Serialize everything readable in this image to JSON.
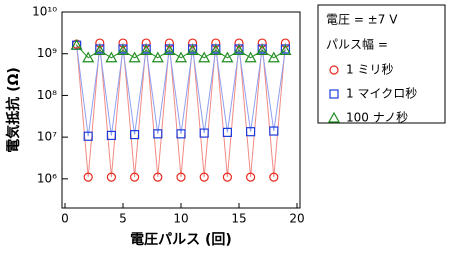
{
  "chart_data": {
    "type": "line",
    "log_y": true,
    "x_label": "電圧パルス (回)",
    "y_label": "電気抵抗 (Ω)",
    "legend_title": "電圧 = ±7 V",
    "legend_subtitle": "パルス幅 =",
    "x": [
      1,
      2,
      3,
      4,
      5,
      6,
      7,
      8,
      9,
      10,
      11,
      12,
      13,
      14,
      15,
      16,
      17,
      18,
      19
    ],
    "xlim": [
      0,
      20
    ],
    "xticks": [
      0,
      5,
      10,
      15,
      20
    ],
    "ylim": [
      200000,
      10000000000
    ],
    "yticks": [
      {
        "value": 1000000,
        "label": "10⁶"
      },
      {
        "value": 10000000,
        "label": "10⁷"
      },
      {
        "value": 100000000,
        "label": "10⁸"
      },
      {
        "value": 1000000000,
        "label": "10⁹"
      },
      {
        "value": 10000000000,
        "label": "10¹⁰"
      }
    ],
    "series": [
      {
        "name": "1 ミリ秒",
        "color": "#e8281e",
        "line_color": "#f28a84",
        "marker": "circle",
        "values": [
          1700000000,
          1100000,
          1800000000,
          1100000,
          1800000000,
          1100000,
          1800000000,
          1100000,
          1800000000,
          1100000,
          1800000000,
          1100000,
          1800000000,
          1100000,
          1800000000,
          1100000,
          1800000000,
          1100000,
          1800000000
        ]
      },
      {
        "name": "1 マイクロ秒",
        "color": "#1e3cdc",
        "line_color": "#8ea0f0",
        "marker": "square",
        "values": [
          1600000000,
          10500000,
          1300000000,
          11000000,
          1300000000,
          11500000,
          1300000000,
          12000000,
          1300000000,
          12000000,
          1300000000,
          12500000,
          1300000000,
          13000000,
          1300000000,
          13500000,
          1300000000,
          14000000,
          1300000000
        ]
      },
      {
        "name": "100 ナノ秒",
        "color": "#1e8c1e",
        "line_color": "#1e8c1e",
        "marker": "triangle",
        "values": [
          1600000000,
          800000000,
          1200000000,
          800000000,
          1200000000,
          800000000,
          1200000000,
          800000000,
          1200000000,
          800000000,
          1200000000,
          800000000,
          1200000000,
          800000000,
          1200000000,
          800000000,
          1200000000,
          800000000,
          1200000000
        ]
      }
    ]
  }
}
